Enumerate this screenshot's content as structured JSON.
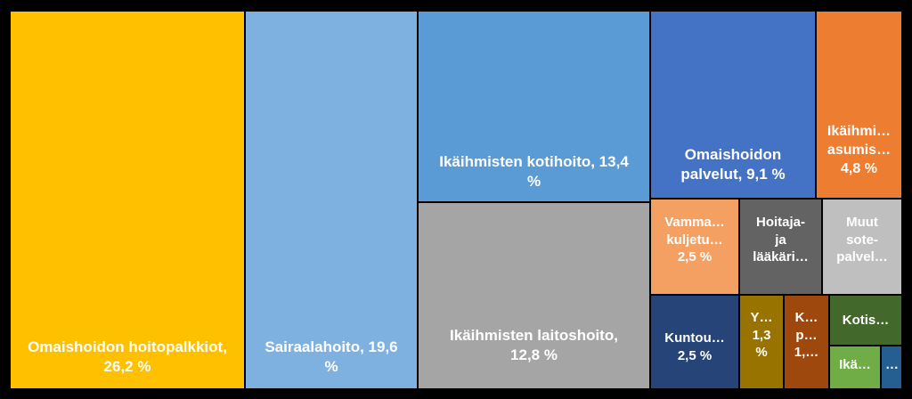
{
  "chart_data": {
    "type": "treemap",
    "title": "",
    "unit": "%",
    "items": [
      {
        "name": "Omaishoidon hoitopalkkiot",
        "label": "Omaishoidon hoitopalkkiot,\n26,2 %",
        "value": 26.2,
        "color": "#FFC000"
      },
      {
        "name": "Sairaalahoito",
        "label": "Sairaalahoito, 19,6\n%",
        "value": 19.6,
        "color": "#7EB0E0"
      },
      {
        "name": "Ikäihmisten kotihoito",
        "label": "Ikäihmisten kotihoito, 13,4\n%",
        "value": 13.4,
        "color": "#5B9BD5"
      },
      {
        "name": "Ikäihmisten laitoshoito",
        "label": "Ikäihmisten laitoshoito,\n12,8 %",
        "value": 12.8,
        "color": "#A5A5A5"
      },
      {
        "name": "Omaishoidon palvelut",
        "label": "Omaishoidon\npalvelut, 9,1 %",
        "value": 9.1,
        "color": "#4472C4"
      },
      {
        "name": "Ikäihmi… asumis…",
        "label": "Ikäihmi…\nasumis…\n4,8 %",
        "value": 4.8,
        "color": "#ED7D31"
      },
      {
        "name": "Vamma… kuljetu…",
        "label": "Vamma…\nkuljetu…\n2,5 %",
        "value": 2.5,
        "color": "#F4A063"
      },
      {
        "name": "Hoitaja- ja lääkäri…",
        "label": "Hoitaja-\nja\nlääkäri…",
        "value": 2.5,
        "color": "#636363"
      },
      {
        "name": "Muut sote-palvel…",
        "label": "Muut\nsote-\npalvel…",
        "value": 2.5,
        "color": "#BFBFBF"
      },
      {
        "name": "Kuntou…",
        "label": "Kuntou…\n2,5 %",
        "value": 2.5,
        "color": "#264478"
      },
      {
        "name": "Y…",
        "label": "Y…\n1,3\n%",
        "value": 1.3,
        "color": "#997300"
      },
      {
        "name": "K… p…",
        "label": "K…\np…\n1,…",
        "value": 1.2,
        "color": "#9E480E"
      },
      {
        "name": "Kotis…",
        "label": "Kotis…",
        "value": 0.9,
        "color": "#43682B"
      },
      {
        "name": "Ikä…",
        "label": "Ikä…",
        "value": 0.6,
        "color": "#70AD47"
      },
      {
        "name": "…",
        "label": "…",
        "value": 0.3,
        "color": "#255E91"
      }
    ]
  }
}
